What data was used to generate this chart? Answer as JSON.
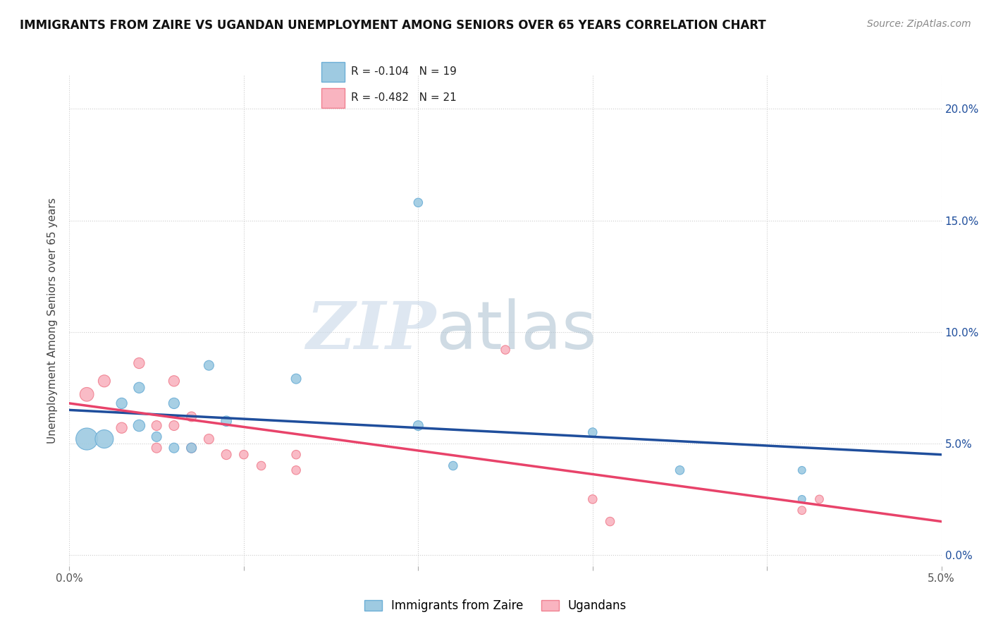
{
  "title": "IMMIGRANTS FROM ZAIRE VS UGANDAN UNEMPLOYMENT AMONG SENIORS OVER 65 YEARS CORRELATION CHART",
  "source": "Source: ZipAtlas.com",
  "ylabel": "Unemployment Among Seniors over 65 years",
  "xlim": [
    0.0,
    0.05
  ],
  "ylim": [
    -0.005,
    0.215
  ],
  "xticks": [
    0.0,
    0.01,
    0.02,
    0.03,
    0.04,
    0.05
  ],
  "xtick_labels": [
    "0.0%",
    "",
    "",
    "",
    "",
    "5.0%"
  ],
  "yticks": [
    0.0,
    0.05,
    0.1,
    0.15,
    0.2
  ],
  "ytick_labels": [
    "0.0%",
    "5.0%",
    "10.0%",
    "15.0%",
    "20.0%"
  ],
  "blue_color": "#9ecae1",
  "pink_color": "#f9b4c0",
  "blue_edge_color": "#6baed6",
  "pink_edge_color": "#f08090",
  "blue_line_color": "#1f4e9c",
  "pink_line_color": "#e8436a",
  "blue_scatter_x": [
    0.001,
    0.002,
    0.003,
    0.004,
    0.004,
    0.005,
    0.006,
    0.006,
    0.007,
    0.008,
    0.009,
    0.013,
    0.02,
    0.022,
    0.03,
    0.035,
    0.042,
    0.042,
    0.02
  ],
  "blue_scatter_y": [
    0.052,
    0.052,
    0.068,
    0.058,
    0.075,
    0.053,
    0.048,
    0.068,
    0.048,
    0.085,
    0.06,
    0.079,
    0.058,
    0.04,
    0.055,
    0.038,
    0.038,
    0.025,
    0.158
  ],
  "blue_scatter_size": [
    500,
    350,
    120,
    140,
    120,
    100,
    100,
    120,
    100,
    100,
    110,
    100,
    100,
    80,
    80,
    80,
    60,
    60,
    80
  ],
  "pink_scatter_x": [
    0.001,
    0.002,
    0.003,
    0.004,
    0.005,
    0.005,
    0.006,
    0.006,
    0.007,
    0.007,
    0.008,
    0.009,
    0.01,
    0.011,
    0.013,
    0.013,
    0.025,
    0.03,
    0.031,
    0.042,
    0.043
  ],
  "pink_scatter_y": [
    0.072,
    0.078,
    0.057,
    0.086,
    0.058,
    0.048,
    0.058,
    0.078,
    0.062,
    0.048,
    0.052,
    0.045,
    0.045,
    0.04,
    0.045,
    0.038,
    0.092,
    0.025,
    0.015,
    0.02,
    0.025
  ],
  "pink_scatter_size": [
    200,
    150,
    120,
    120,
    100,
    100,
    100,
    120,
    100,
    100,
    100,
    100,
    80,
    80,
    80,
    80,
    80,
    80,
    80,
    70,
    70
  ],
  "blue_line_x": [
    0.0,
    0.05
  ],
  "blue_line_y": [
    0.065,
    0.045
  ],
  "pink_line_x": [
    0.0,
    0.05
  ],
  "pink_line_y": [
    0.068,
    0.015
  ],
  "background_color": "#ffffff",
  "grid_color": "#cccccc",
  "legend_label_blue": "Immigrants from Zaire",
  "legend_label_pink": "Ugandans",
  "legend_blue_r": "R = -0.104",
  "legend_blue_n": "N = 19",
  "legend_pink_r": "R = -0.482",
  "legend_pink_n": "N = 21"
}
